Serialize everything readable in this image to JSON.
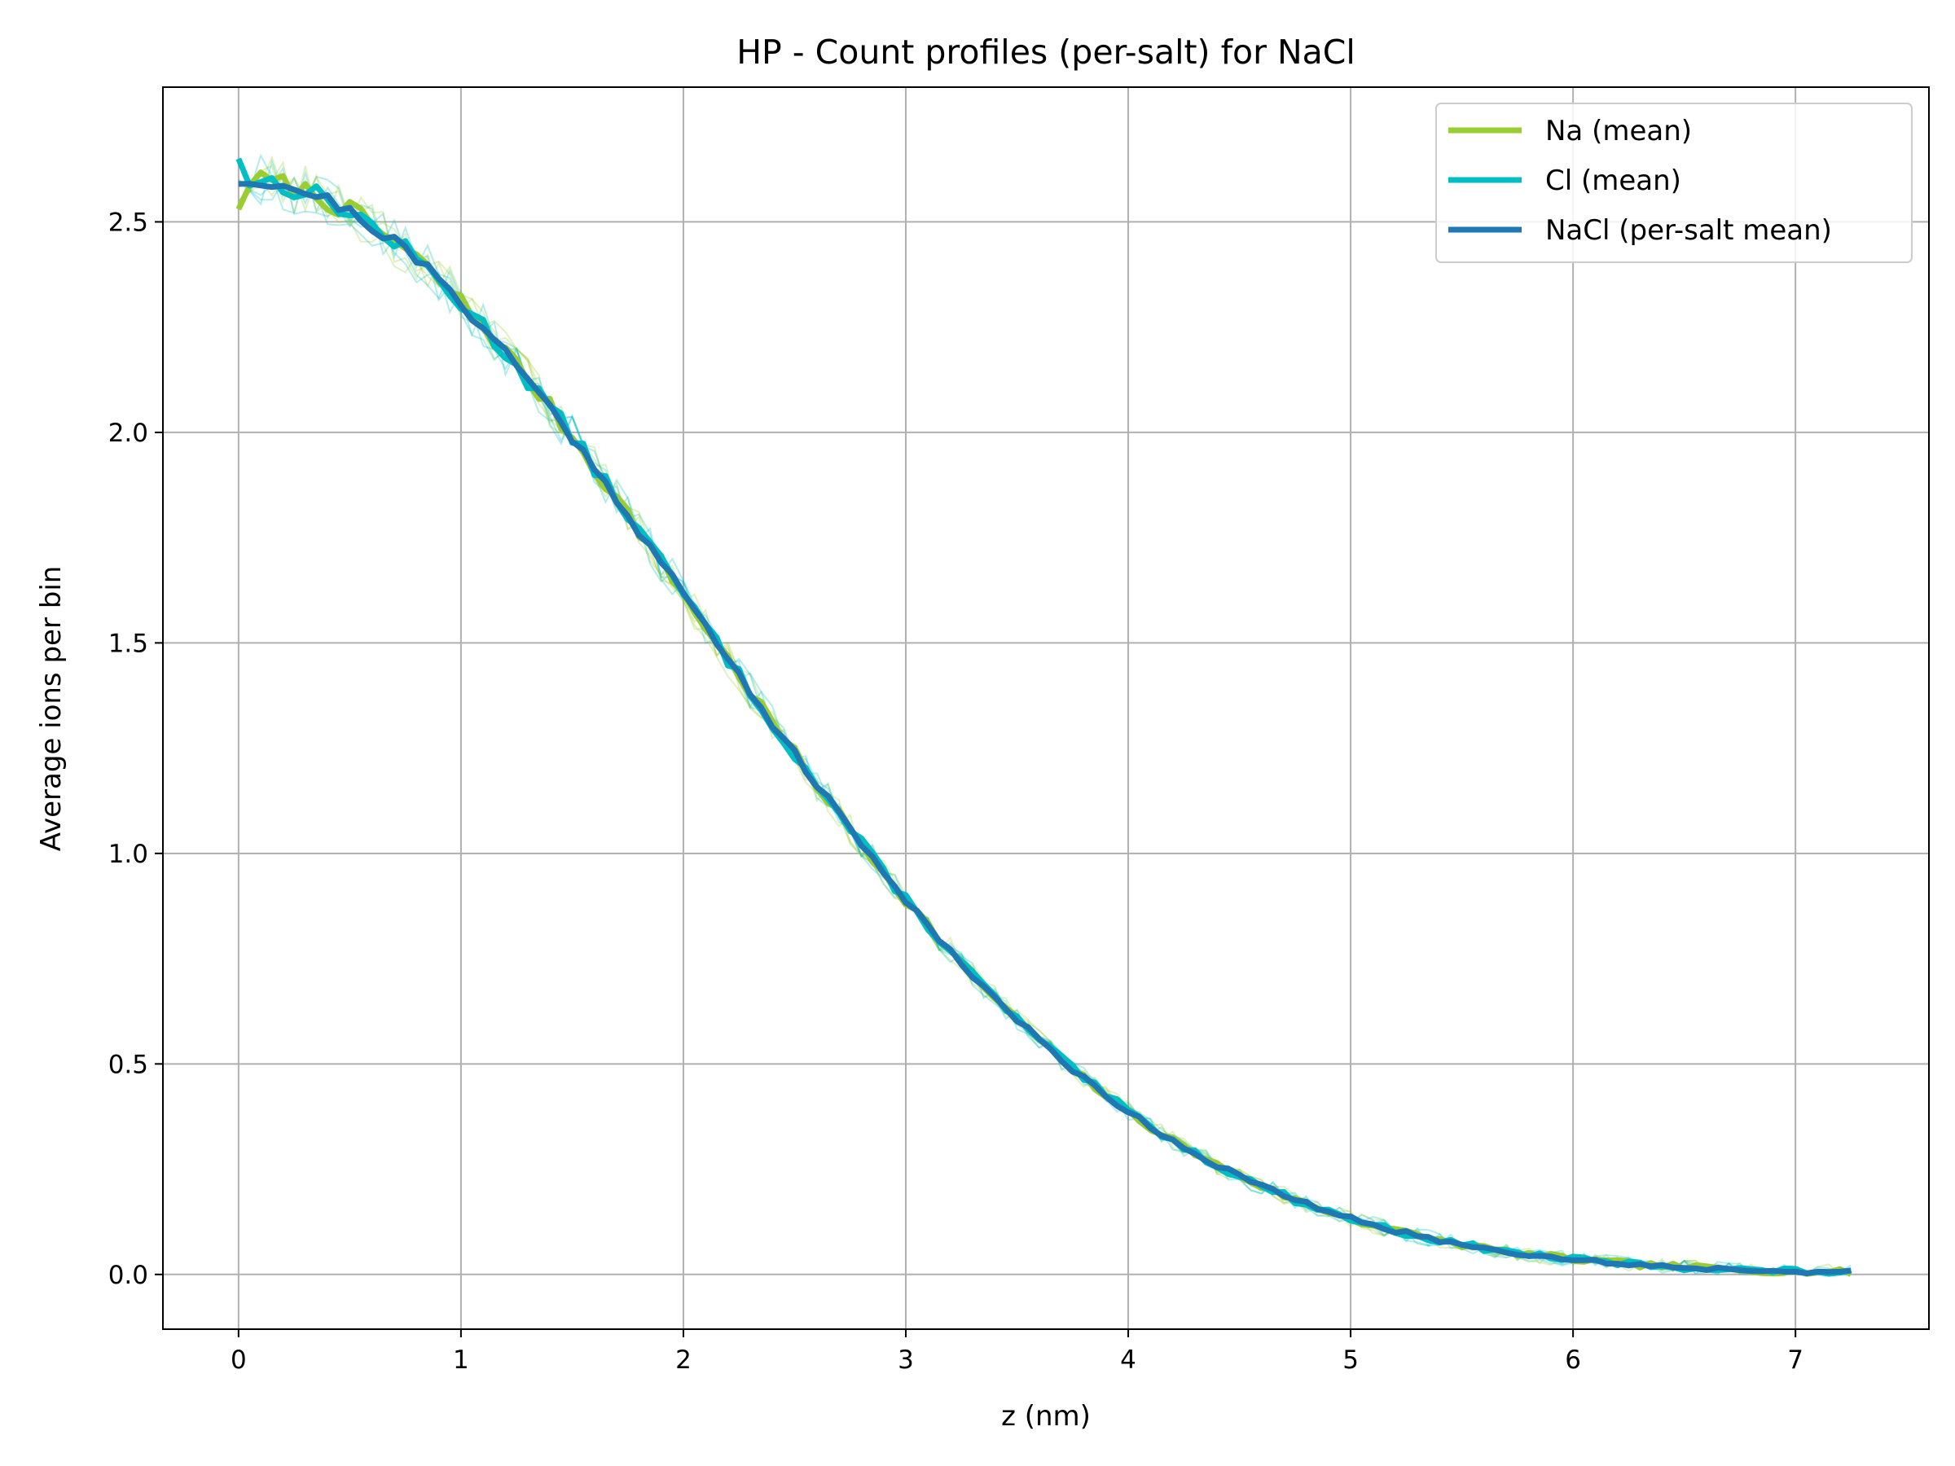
{
  "chart_data": {
    "type": "line",
    "title": "HP - Count profiles (per-salt) for NaCl",
    "xlabel": "z (nm)",
    "ylabel": "Average ions per bin",
    "xlim": [
      -0.34,
      7.6
    ],
    "ylim": [
      -0.13,
      2.82
    ],
    "xticks": [
      0,
      1,
      2,
      3,
      4,
      5,
      6,
      7
    ],
    "xtick_labels": [
      "0",
      "1",
      "2",
      "3",
      "4",
      "5",
      "6",
      "7"
    ],
    "yticks": [
      0.0,
      0.5,
      1.0,
      1.5,
      2.0,
      2.5
    ],
    "ytick_labels": [
      "0.0",
      "0.5",
      "1.0",
      "1.5",
      "2.0",
      "2.5"
    ],
    "grid": true,
    "legend_position": "top-right",
    "curve_model": {
      "x_start": 0.0,
      "x_end": 7.25,
      "step": 0.05,
      "gaussian_amplitude": 2.6,
      "gaussian_sigma": 2.05
    },
    "series": [
      {
        "name": "Na (mean)",
        "color": "#9acd32",
        "start_value": 2.53,
        "noise": 0.018,
        "seed": 7
      },
      {
        "name": "Cl (mean)",
        "color": "#00bfc4",
        "start_value": 2.65,
        "noise": 0.018,
        "seed": 13
      },
      {
        "name": "NaCl (per-salt mean)",
        "color": "#1f77b4",
        "start_value": 2.59,
        "noise": 0.012,
        "seed": 21
      }
    ],
    "replicate_traces": {
      "count": 8,
      "colors": [
        "#9acd32",
        "#00bfc4"
      ],
      "noise": 0.045
    }
  }
}
